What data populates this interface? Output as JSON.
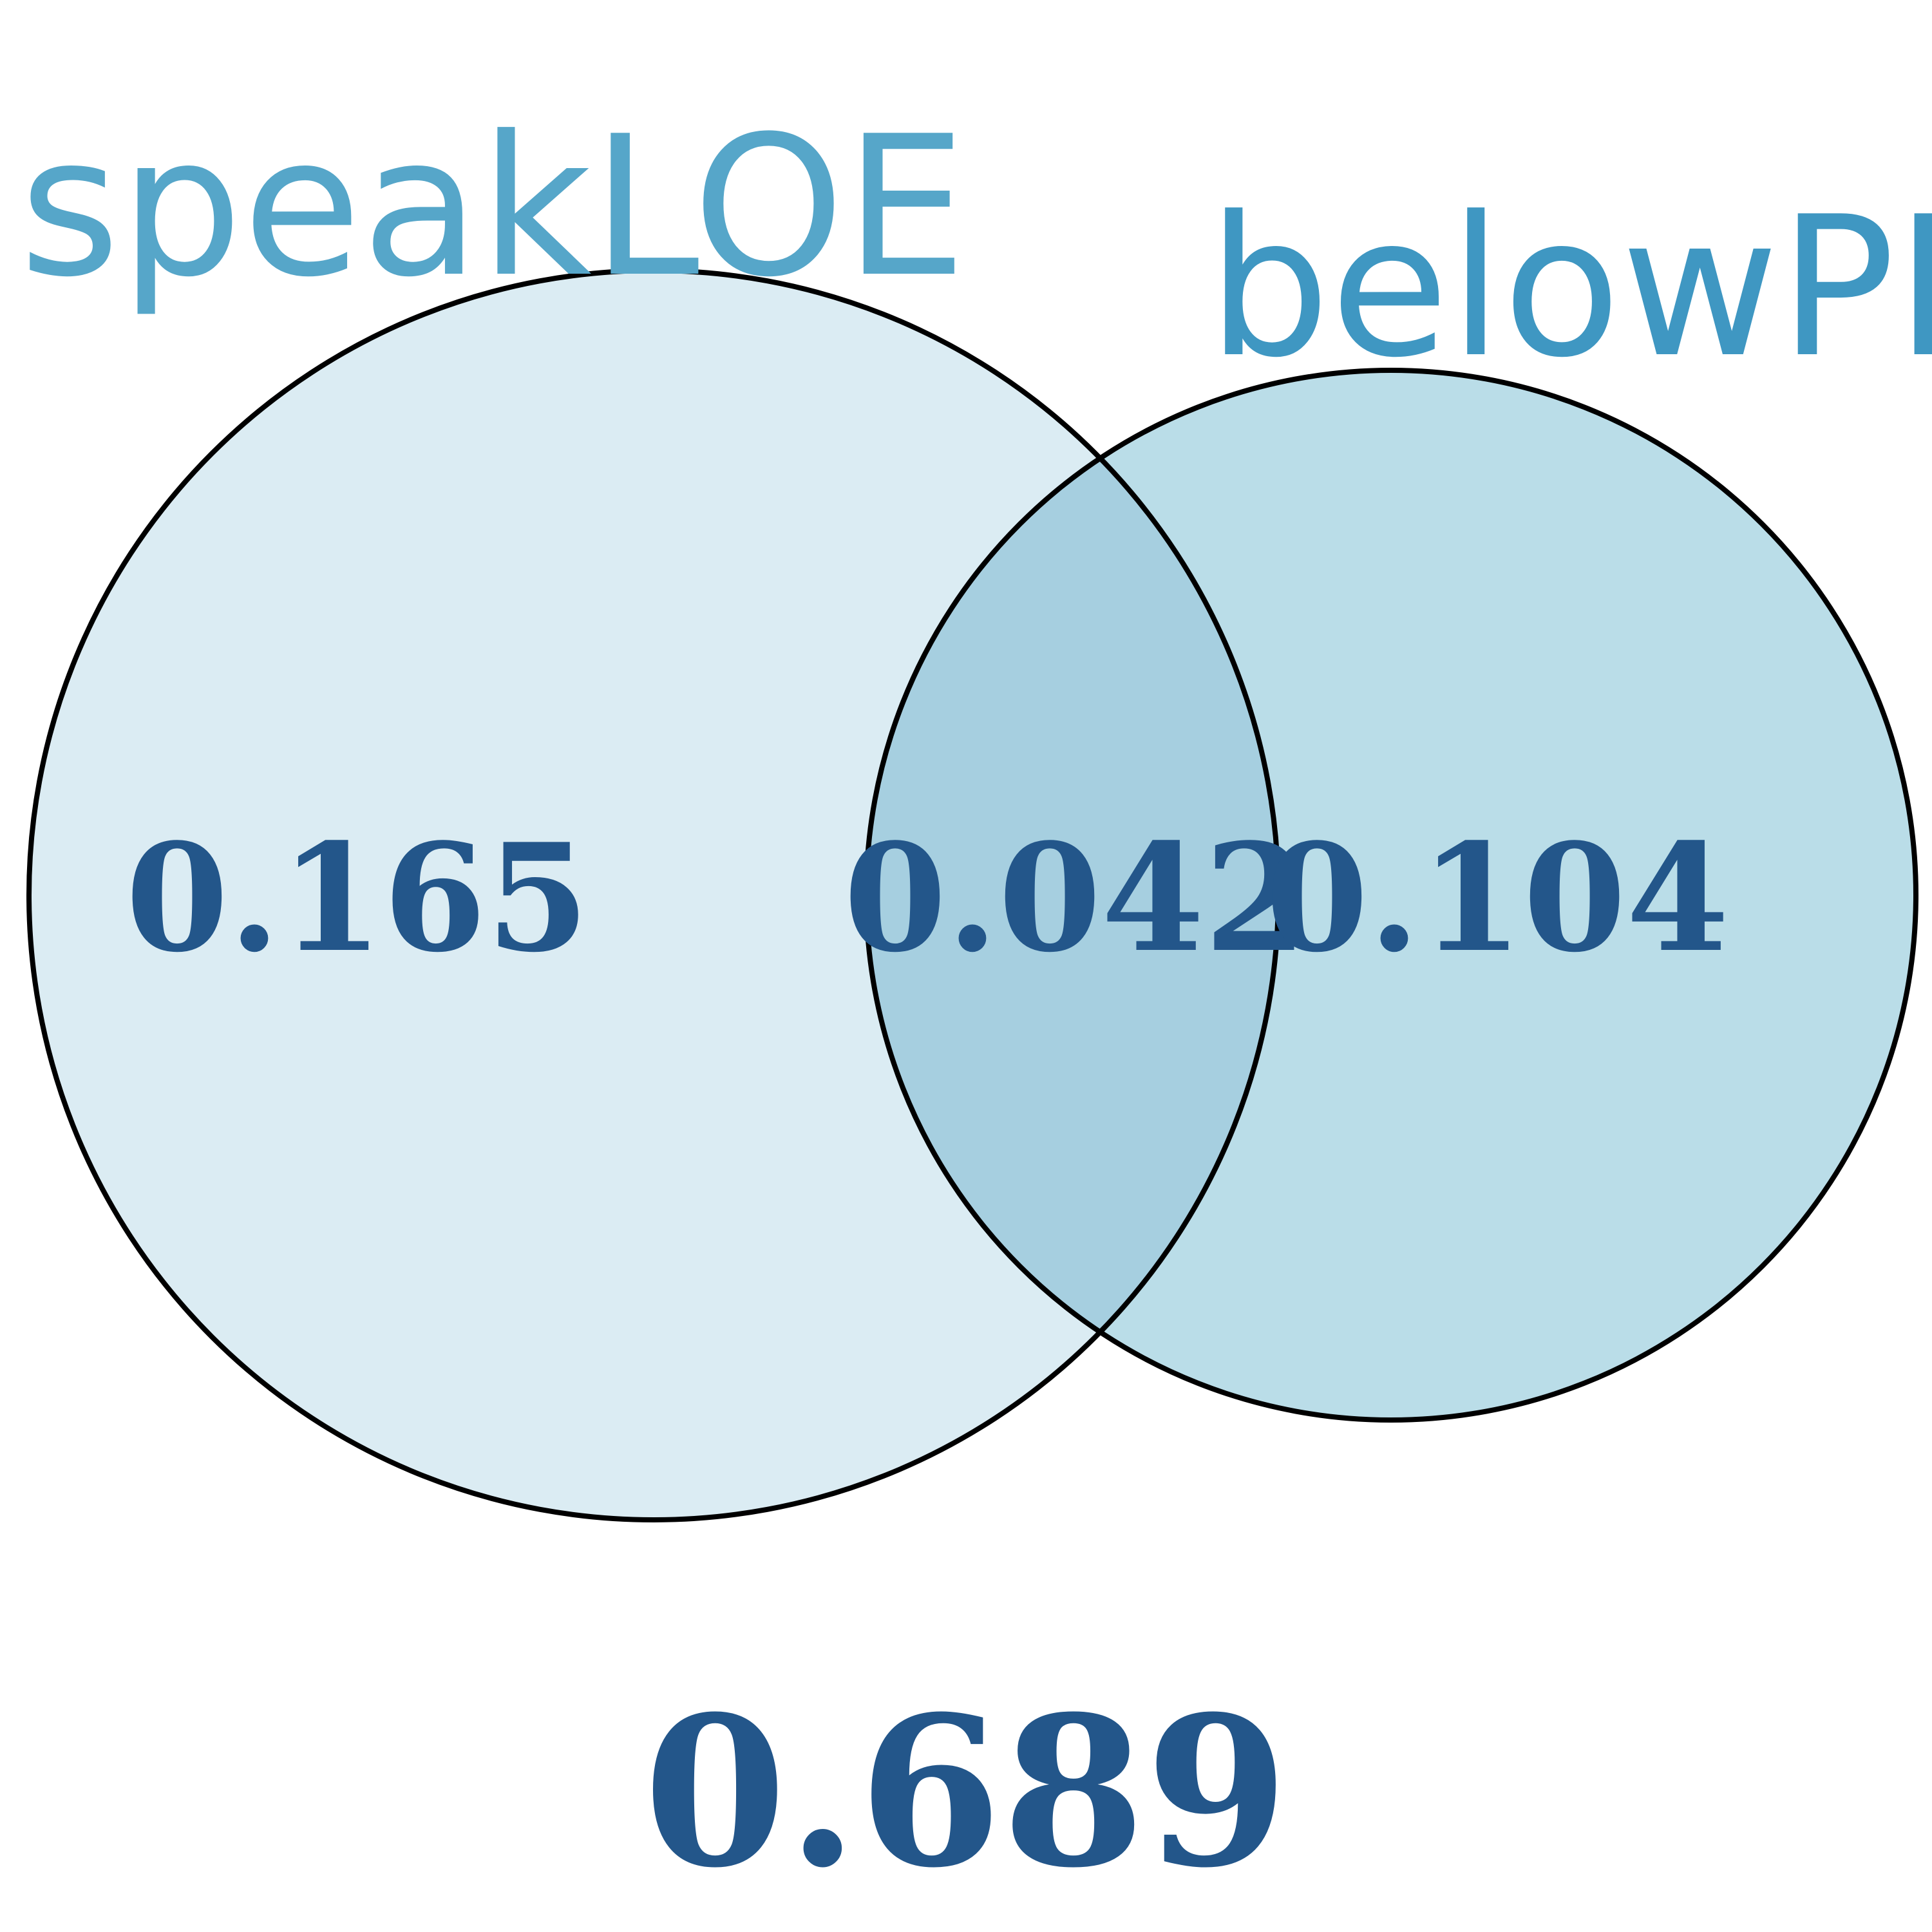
{
  "venn": {
    "sets": [
      {
        "label": "speakLOE",
        "label_color": "#56a6c9",
        "fill": "#dbecf3"
      },
      {
        "label": "belowPL",
        "label_color": "#3f97c2",
        "fill": "#badde8"
      }
    ],
    "regions": {
      "left_only": "0.165",
      "intersection": "0.042",
      "right_only": "0.104",
      "outside": "0.689"
    },
    "intersection_fill": "#a6cfe0",
    "value_color": "#23568a",
    "outline_color": "#000000"
  }
}
